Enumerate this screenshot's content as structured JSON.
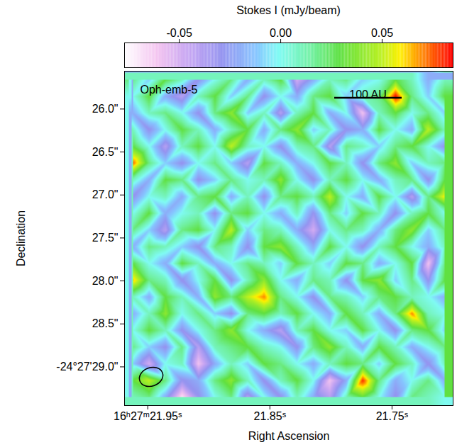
{
  "chart_data": {
    "type": "heatmap",
    "x_label": "Right Ascension",
    "y_label": "Declination",
    "annotations": [
      "Oph-emb-5"
    ],
    "scale_bar": {
      "label": "100 AU"
    },
    "xlim": [
      21.969,
      21.7
    ],
    "xticks": [
      {
        "value": 21.95,
        "label": "16ʰ27ᵐ21.95ˢ"
      },
      {
        "value": 21.85,
        "label": "21.85ˢ"
      },
      {
        "value": 21.75,
        "label": "21.75ˢ"
      }
    ],
    "ylim": [
      29.45,
      25.56
    ],
    "yticks": [
      {
        "value": 26.0,
        "label": "26.0\""
      },
      {
        "value": 26.5,
        "label": "26.5\""
      },
      {
        "value": 27.0,
        "label": "27.0\""
      },
      {
        "value": 27.5,
        "label": "27.5\""
      },
      {
        "value": 28.0,
        "label": "28.0\""
      },
      {
        "value": 28.5,
        "label": "28.5\""
      },
      {
        "value": 29.0,
        "label": "-24°27'29.0\""
      }
    ],
    "colorbar": {
      "label": "Stokes I (mJy/beam)",
      "range": [
        -0.077,
        0.085
      ],
      "ticks": [
        {
          "value": -0.05,
          "label": "-0.05"
        },
        {
          "value": 0.0,
          "label": "0.00"
        },
        {
          "value": 0.05,
          "label": "0.05"
        }
      ]
    },
    "cells": {
      "x": [
        21.9623,
        21.9488,
        21.9354,
        21.9219,
        21.9085,
        21.895,
        21.8816,
        21.8681,
        21.8547,
        21.8412,
        21.8278,
        21.8143,
        21.8009,
        21.7874,
        21.774,
        21.7605,
        21.7471,
        21.7336,
        21.7202,
        21.7067
      ],
      "y": [
        25.657,
        25.852,
        26.046,
        26.241,
        26.435,
        26.63,
        26.824,
        27.019,
        27.213,
        27.408,
        27.602,
        27.797,
        27.991,
        28.186,
        28.38,
        28.575,
        28.769,
        28.964,
        29.158,
        29.353
      ],
      "values": [
        [
          0.02,
          -0.01,
          0.03,
          0.01,
          -0.03,
          0.0,
          0.02,
          -0.02,
          0.01,
          0.03,
          -0.05,
          -0.02,
          0.01,
          0.02,
          -0.01,
          0.0,
          0.03,
          0.01,
          -0.02,
          0.01
        ],
        [
          0.0,
          0.03,
          -0.02,
          -0.04,
          0.01,
          0.03,
          -0.01,
          0.02,
          -0.03,
          0.0,
          -0.02,
          0.02,
          0.03,
          -0.01,
          0.01,
          0.02,
          0.085,
          0.02,
          -0.01,
          0.03
        ],
        [
          -0.02,
          0.01,
          0.02,
          0.0,
          -0.03,
          0.02,
          0.04,
          -0.01,
          0.01,
          -0.04,
          0.01,
          0.03,
          -0.02,
          0.0,
          -0.06,
          0.01,
          0.03,
          0.0,
          0.02,
          -0.01
        ],
        [
          0.01,
          -0.03,
          0.0,
          0.03,
          0.01,
          -0.02,
          0.01,
          0.03,
          -0.02,
          0.02,
          0.04,
          -0.01,
          0.01,
          -0.03,
          -0.02,
          0.03,
          0.0,
          -0.02,
          0.05,
          0.01
        ],
        [
          0.03,
          0.0,
          -0.04,
          0.01,
          0.03,
          0.0,
          0.05,
          0.01,
          0.0,
          -0.03,
          0.01,
          0.02,
          -0.04,
          0.02,
          0.01,
          -0.01,
          0.02,
          0.03,
          0.0,
          -0.03
        ],
        [
          0.075,
          0.02,
          -0.01,
          -0.03,
          0.0,
          0.02,
          -0.01,
          -0.04,
          0.03,
          0.01,
          -0.02,
          0.0,
          0.03,
          0.01,
          -0.03,
          0.02,
          0.04,
          -0.01,
          0.01,
          0.02
        ],
        [
          0.01,
          -0.02,
          0.03,
          0.02,
          -0.03,
          -0.01,
          0.02,
          0.0,
          0.01,
          0.04,
          0.0,
          -0.03,
          0.01,
          0.03,
          0.0,
          -0.02,
          0.01,
          0.02,
          -0.03,
          0.03
        ],
        [
          -0.03,
          0.0,
          0.01,
          -0.02,
          0.02,
          0.03,
          -0.02,
          0.01,
          -0.03,
          0.02,
          0.03,
          0.01,
          0.05,
          0.0,
          -0.02,
          0.03,
          0.0,
          -0.04,
          0.02,
          0.06
        ],
        [
          0.0,
          0.03,
          -0.02,
          0.0,
          0.01,
          -0.03,
          0.02,
          0.03,
          0.0,
          -0.02,
          0.01,
          -0.03,
          0.02,
          -0.01,
          0.03,
          0.01,
          -0.03,
          0.01,
          0.03,
          0.0
        ],
        [
          0.02,
          -0.01,
          -0.04,
          0.02,
          0.03,
          0.0,
          0.05,
          -0.01,
          0.02,
          0.01,
          -0.02,
          -0.05,
          0.0,
          0.02,
          0.01,
          -0.02,
          0.02,
          0.04,
          -0.01,
          0.02
        ],
        [
          -0.02,
          0.02,
          0.01,
          -0.01,
          -0.03,
          0.02,
          0.01,
          -0.03,
          0.03,
          0.04,
          0.01,
          -0.02,
          0.03,
          0.0,
          -0.03,
          0.01,
          0.03,
          0.0,
          -0.02,
          0.01
        ],
        [
          0.03,
          0.0,
          -0.02,
          0.03,
          0.01,
          -0.02,
          0.0,
          0.02,
          0.01,
          -0.01,
          0.03,
          0.01,
          -0.01,
          0.03,
          0.02,
          -0.02,
          0.0,
          0.03,
          -0.06,
          0.02
        ],
        [
          0.065,
          0.02,
          0.01,
          -0.03,
          0.0,
          0.03,
          -0.03,
          0.01,
          0.04,
          0.0,
          -0.02,
          0.02,
          0.01,
          -0.03,
          0.03,
          0.04,
          -0.01,
          0.02,
          -0.03,
          0.03
        ],
        [
          0.01,
          -0.02,
          0.03,
          0.01,
          -0.02,
          0.04,
          0.02,
          0.05,
          0.07,
          0.02,
          0.0,
          -0.03,
          0.02,
          0.01,
          -0.01,
          0.02,
          0.03,
          0.01,
          0.0,
          -0.02
        ],
        [
          -0.02,
          0.01,
          0.04,
          0.0,
          0.02,
          -0.01,
          -0.03,
          0.02,
          0.03,
          0.01,
          0.03,
          0.0,
          -0.02,
          0.03,
          0.01,
          -0.02,
          0.02,
          0.07,
          0.01,
          0.0
        ],
        [
          0.0,
          0.03,
          0.01,
          -0.03,
          0.0,
          0.02,
          0.04,
          0.0,
          -0.02,
          -0.04,
          0.01,
          0.03,
          0.0,
          -0.01,
          0.03,
          0.0,
          -0.03,
          0.02,
          0.03,
          -0.01
        ],
        [
          0.02,
          -0.01,
          -0.03,
          0.02,
          -0.04,
          0.01,
          0.02,
          0.03,
          0.01,
          0.0,
          -0.03,
          0.02,
          0.04,
          0.01,
          -0.02,
          0.03,
          0.01,
          -0.02,
          0.0,
          0.02
        ],
        [
          -0.01,
          -0.05,
          0.0,
          0.01,
          -0.06,
          -0.02,
          0.01,
          -0.01,
          0.03,
          0.02,
          0.0,
          -0.02,
          0.01,
          0.03,
          0.02,
          -0.01,
          0.03,
          0.01,
          -0.03,
          0.01
        ],
        [
          0.03,
          0.05,
          0.02,
          -0.03,
          -0.02,
          0.02,
          0.04,
          0.01,
          -0.03,
          0.01,
          0.03,
          0.0,
          -0.06,
          -0.02,
          0.08,
          0.02,
          -0.02,
          0.0,
          0.02,
          -0.02
        ],
        [
          0.01,
          0.02,
          -0.02,
          -0.07,
          -0.03,
          0.0,
          0.02,
          -0.04,
          0.0,
          -0.03,
          0.01,
          -0.02,
          -0.04,
          0.01,
          0.03,
          0.0,
          -0.03,
          0.02,
          0.01,
          0.0
        ]
      ]
    }
  }
}
